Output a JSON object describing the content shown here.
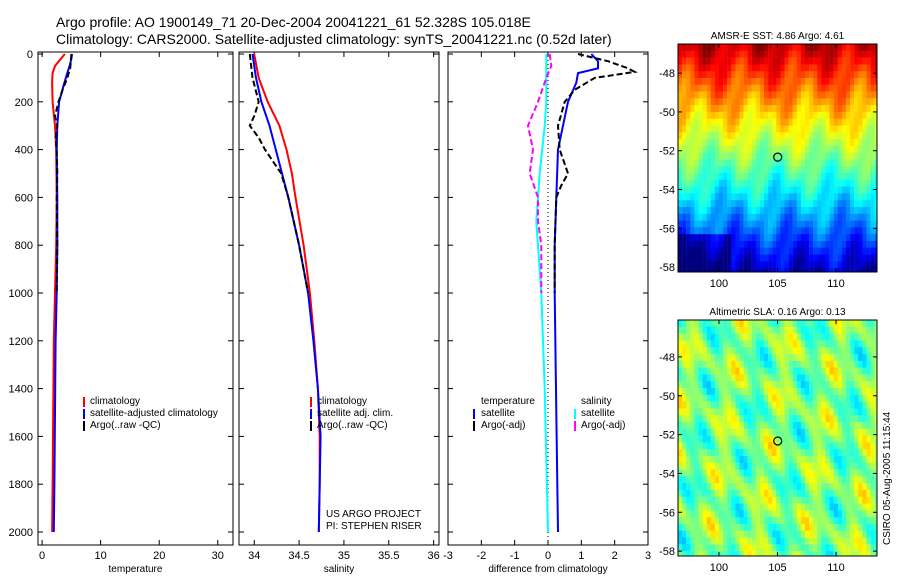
{
  "title_line1": "Argo profile: AO 1900149_71 20-Dec-2004 20041221_61 52.328S 105.018E",
  "title_line2": "Climatology: CARS2000. Satellite-adjusted climatology: synTS_20041221.nc (0.52d later)",
  "footer_project": "US ARGO PROJECT",
  "footer_pi": "PI: STEPHEN RISER",
  "side_stamp": "CSIRO 05-Aug-2005 11:15:44",
  "colors": {
    "climatology": "#ff0000",
    "satellite": "#0000ff",
    "argo": "#000000",
    "sal_satellite": "#00ffff",
    "sal_argo": "#ff00ff"
  },
  "chart_data": [
    {
      "type": "line",
      "xlabel": "temperature",
      "ylabel": "",
      "xlim": [
        -0.7,
        32.6
      ],
      "ylim": [
        2000,
        0
      ],
      "xticks": [
        0,
        10,
        20,
        30
      ],
      "yticks": [
        0,
        200,
        400,
        600,
        800,
        1000,
        1200,
        1400,
        1600,
        1800,
        2000
      ],
      "legend": [
        "climatology",
        "satellite-adjusted climatology",
        "Argo(..raw -QC)"
      ],
      "depth": [
        0,
        20,
        50,
        80,
        120,
        200,
        300,
        400,
        600,
        800,
        1000,
        1200,
        1500,
        1800,
        2000
      ],
      "series": [
        {
          "name": "climatology",
          "color": "#ff0000",
          "values": [
            3.9,
            3.2,
            2.2,
            1.8,
            1.7,
            1.8,
            2.2,
            2.4,
            2.5,
            2.4,
            2.2,
            2.0,
            1.9,
            1.8,
            1.7
          ]
        },
        {
          "name": "satellite-adjusted climatology",
          "color": "#0000ff",
          "values": [
            5.1,
            5.0,
            4.7,
            4.3,
            3.8,
            2.9,
            2.6,
            2.5,
            2.6,
            2.6,
            2.5,
            2.3,
            2.2,
            2.1,
            2.0
          ]
        },
        {
          "name": "Argo(..raw -QC)",
          "color": "#000000",
          "dashed": true,
          "depth": [
            0,
            30,
            60,
            100,
            150,
            200,
            260,
            300,
            350,
            400,
            500,
            600,
            800,
            1000
          ],
          "values": [
            5.0,
            4.9,
            4.8,
            4.3,
            3.5,
            2.8,
            2.2,
            2.6,
            2.3,
            2.5,
            2.6,
            2.5,
            2.6,
            2.5
          ]
        }
      ]
    },
    {
      "type": "line",
      "xlabel": "salinity",
      "xlim": [
        33.83,
        36.06
      ],
      "ylim": [
        2000,
        0
      ],
      "xticks": [
        34,
        34.5,
        35,
        35.5,
        36
      ],
      "legend": [
        "climatology",
        "satellite adj. clim.",
        "Argo(..raw -QC)"
      ],
      "depth": [
        0,
        100,
        200,
        300,
        400,
        500,
        600,
        800,
        1000,
        1200,
        1400,
        1600,
        1800,
        2000
      ],
      "series": [
        {
          "name": "climatology",
          "color": "#ff0000",
          "values": [
            34.0,
            34.05,
            34.15,
            34.28,
            34.36,
            34.42,
            34.46,
            34.55,
            34.62,
            34.67,
            34.71,
            34.73,
            34.73,
            34.72
          ]
        },
        {
          "name": "satellite adj. clim.",
          "color": "#0000ff",
          "values": [
            33.98,
            34.02,
            34.08,
            34.17,
            34.24,
            34.31,
            34.38,
            34.5,
            34.6,
            34.66,
            34.71,
            34.74,
            34.73,
            34.72
          ]
        },
        {
          "name": "Argo(..raw -QC)",
          "color": "#000000",
          "dashed": true,
          "depth": [
            0,
            100,
            200,
            260,
            300,
            350,
            400,
            500,
            600,
            700,
            800,
            1000
          ],
          "values": [
            33.95,
            33.98,
            34.05,
            34.0,
            33.95,
            34.05,
            34.12,
            34.3,
            34.38,
            34.44,
            34.5,
            34.6
          ]
        }
      ]
    },
    {
      "type": "line",
      "xlabel": "difference from climatology",
      "xlim": [
        -3,
        3
      ],
      "ylim": [
        2000,
        0
      ],
      "xticks": [
        -3,
        -2,
        -1,
        0,
        1,
        2,
        3
      ],
      "legend_temperature": {
        "header": "temperature",
        "items": [
          "satellite",
          "Argo(-adj)"
        ]
      },
      "legend_salinity": {
        "header": "salinity",
        "items": [
          "satellite",
          "Argo(-adj)"
        ]
      },
      "series": [
        {
          "name": "temperature satellite",
          "color": "#0000ff",
          "depth": [
            0,
            30,
            60,
            80,
            120,
            200,
            300,
            400,
            600,
            800,
            1000,
            1500,
            2000
          ],
          "values": [
            1.3,
            1.5,
            1.5,
            0.9,
            0.85,
            0.6,
            0.45,
            0.3,
            0.25,
            0.2,
            0.2,
            0.25,
            0.3
          ]
        },
        {
          "name": "temperature Argo(-adj)",
          "color": "#000000",
          "dashed": true,
          "depth": [
            0,
            30,
            60,
            75,
            100,
            150,
            200,
            300,
            400,
            500,
            550,
            600,
            800,
            1000
          ],
          "values": [
            0.9,
            1.8,
            2.4,
            2.6,
            1.4,
            0.8,
            0.5,
            0.3,
            0.35,
            0.6,
            0.4,
            0.25,
            0.2,
            0.2
          ]
        },
        {
          "name": "salinity satellite",
          "color": "#00ffff",
          "depth": [
            0,
            100,
            200,
            300,
            500,
            700,
            1000,
            1400,
            2000
          ],
          "values": [
            -0.05,
            -0.05,
            -0.05,
            -0.1,
            -0.25,
            -0.35,
            -0.2,
            -0.1,
            0.0
          ]
        },
        {
          "name": "salinity Argo(-adj)",
          "color": "#ff00ff",
          "dashed": true,
          "depth": [
            0,
            50,
            100,
            200,
            300,
            400,
            500,
            600,
            700,
            800,
            1000
          ],
          "values": [
            0.05,
            0.1,
            -0.05,
            -0.3,
            -0.6,
            -0.45,
            -0.55,
            -0.3,
            -0.3,
            -0.2,
            -0.2
          ]
        }
      ],
      "zero_line": 0
    },
    {
      "type": "heatmap",
      "title": "AMSR-E SST: 4.86 Argo: 4.61",
      "xlim": [
        96.5,
        113.5
      ],
      "ylim": [
        -58.25,
        -46.5
      ],
      "xticks": [
        100,
        105,
        110
      ],
      "yticks": [
        -48,
        -50,
        -52,
        -54,
        -56,
        -58
      ],
      "marker": {
        "lon": 105.018,
        "lat": -52.328
      }
    },
    {
      "type": "heatmap",
      "title": "Altimetric SLA: 0.16 Argo: 0.13",
      "xlim": [
        96.5,
        113.5
      ],
      "ylim": [
        -58.25,
        -46.1
      ],
      "xticks": [
        100,
        105,
        110
      ],
      "yticks": [
        -48,
        -50,
        -52,
        -54,
        -56,
        -58
      ],
      "marker": {
        "lon": 105.018,
        "lat": -52.328
      }
    }
  ]
}
